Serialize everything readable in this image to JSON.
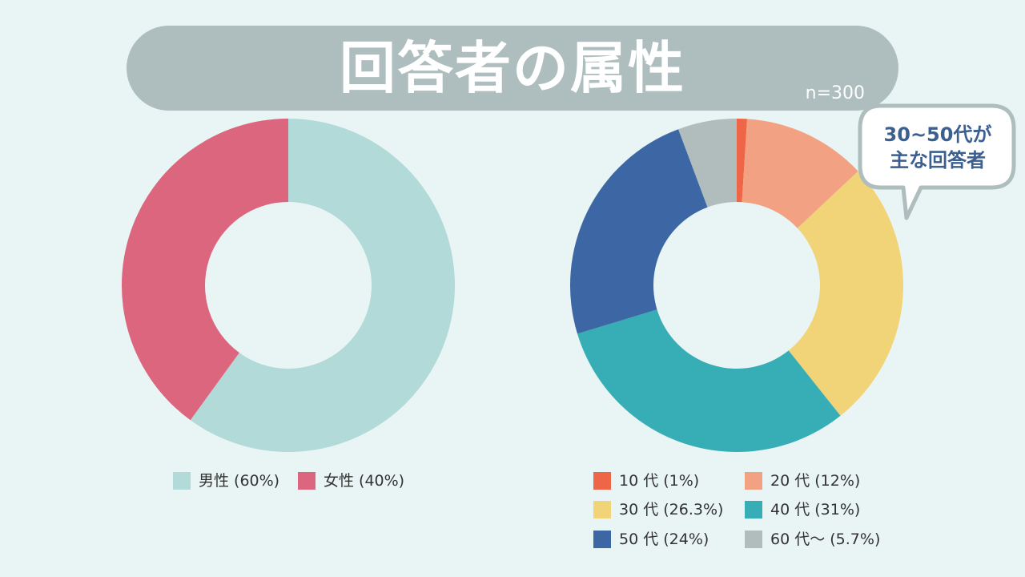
{
  "title": "回答者の属性",
  "sample_size": "n=300",
  "callout": {
    "line1": "30~50代が",
    "line2": "主な回答者"
  },
  "chart_data": [
    {
      "type": "pie",
      "subtype": "donut",
      "categories": [
        "男性 (60%)",
        "女性 (40%)"
      ],
      "values": [
        60,
        40
      ],
      "colors": [
        "#b1dad9",
        "#db667d"
      ],
      "legend_position": "bottom"
    },
    {
      "type": "pie",
      "subtype": "donut",
      "categories": [
        "10 代 (1%)",
        "20 代 (12%)",
        "30 代 (26.3%)",
        "40 代 (31%)",
        "50 代 (24%)",
        "60 代〜 (5.7%)"
      ],
      "values": [
        1,
        12,
        26.3,
        31,
        24,
        5.7
      ],
      "colors": [
        "#ef6547",
        "#f2a282",
        "#f1d378",
        "#37aeb5",
        "#3c67a4",
        "#b1bdbd"
      ],
      "legend_position": "bottom"
    }
  ]
}
